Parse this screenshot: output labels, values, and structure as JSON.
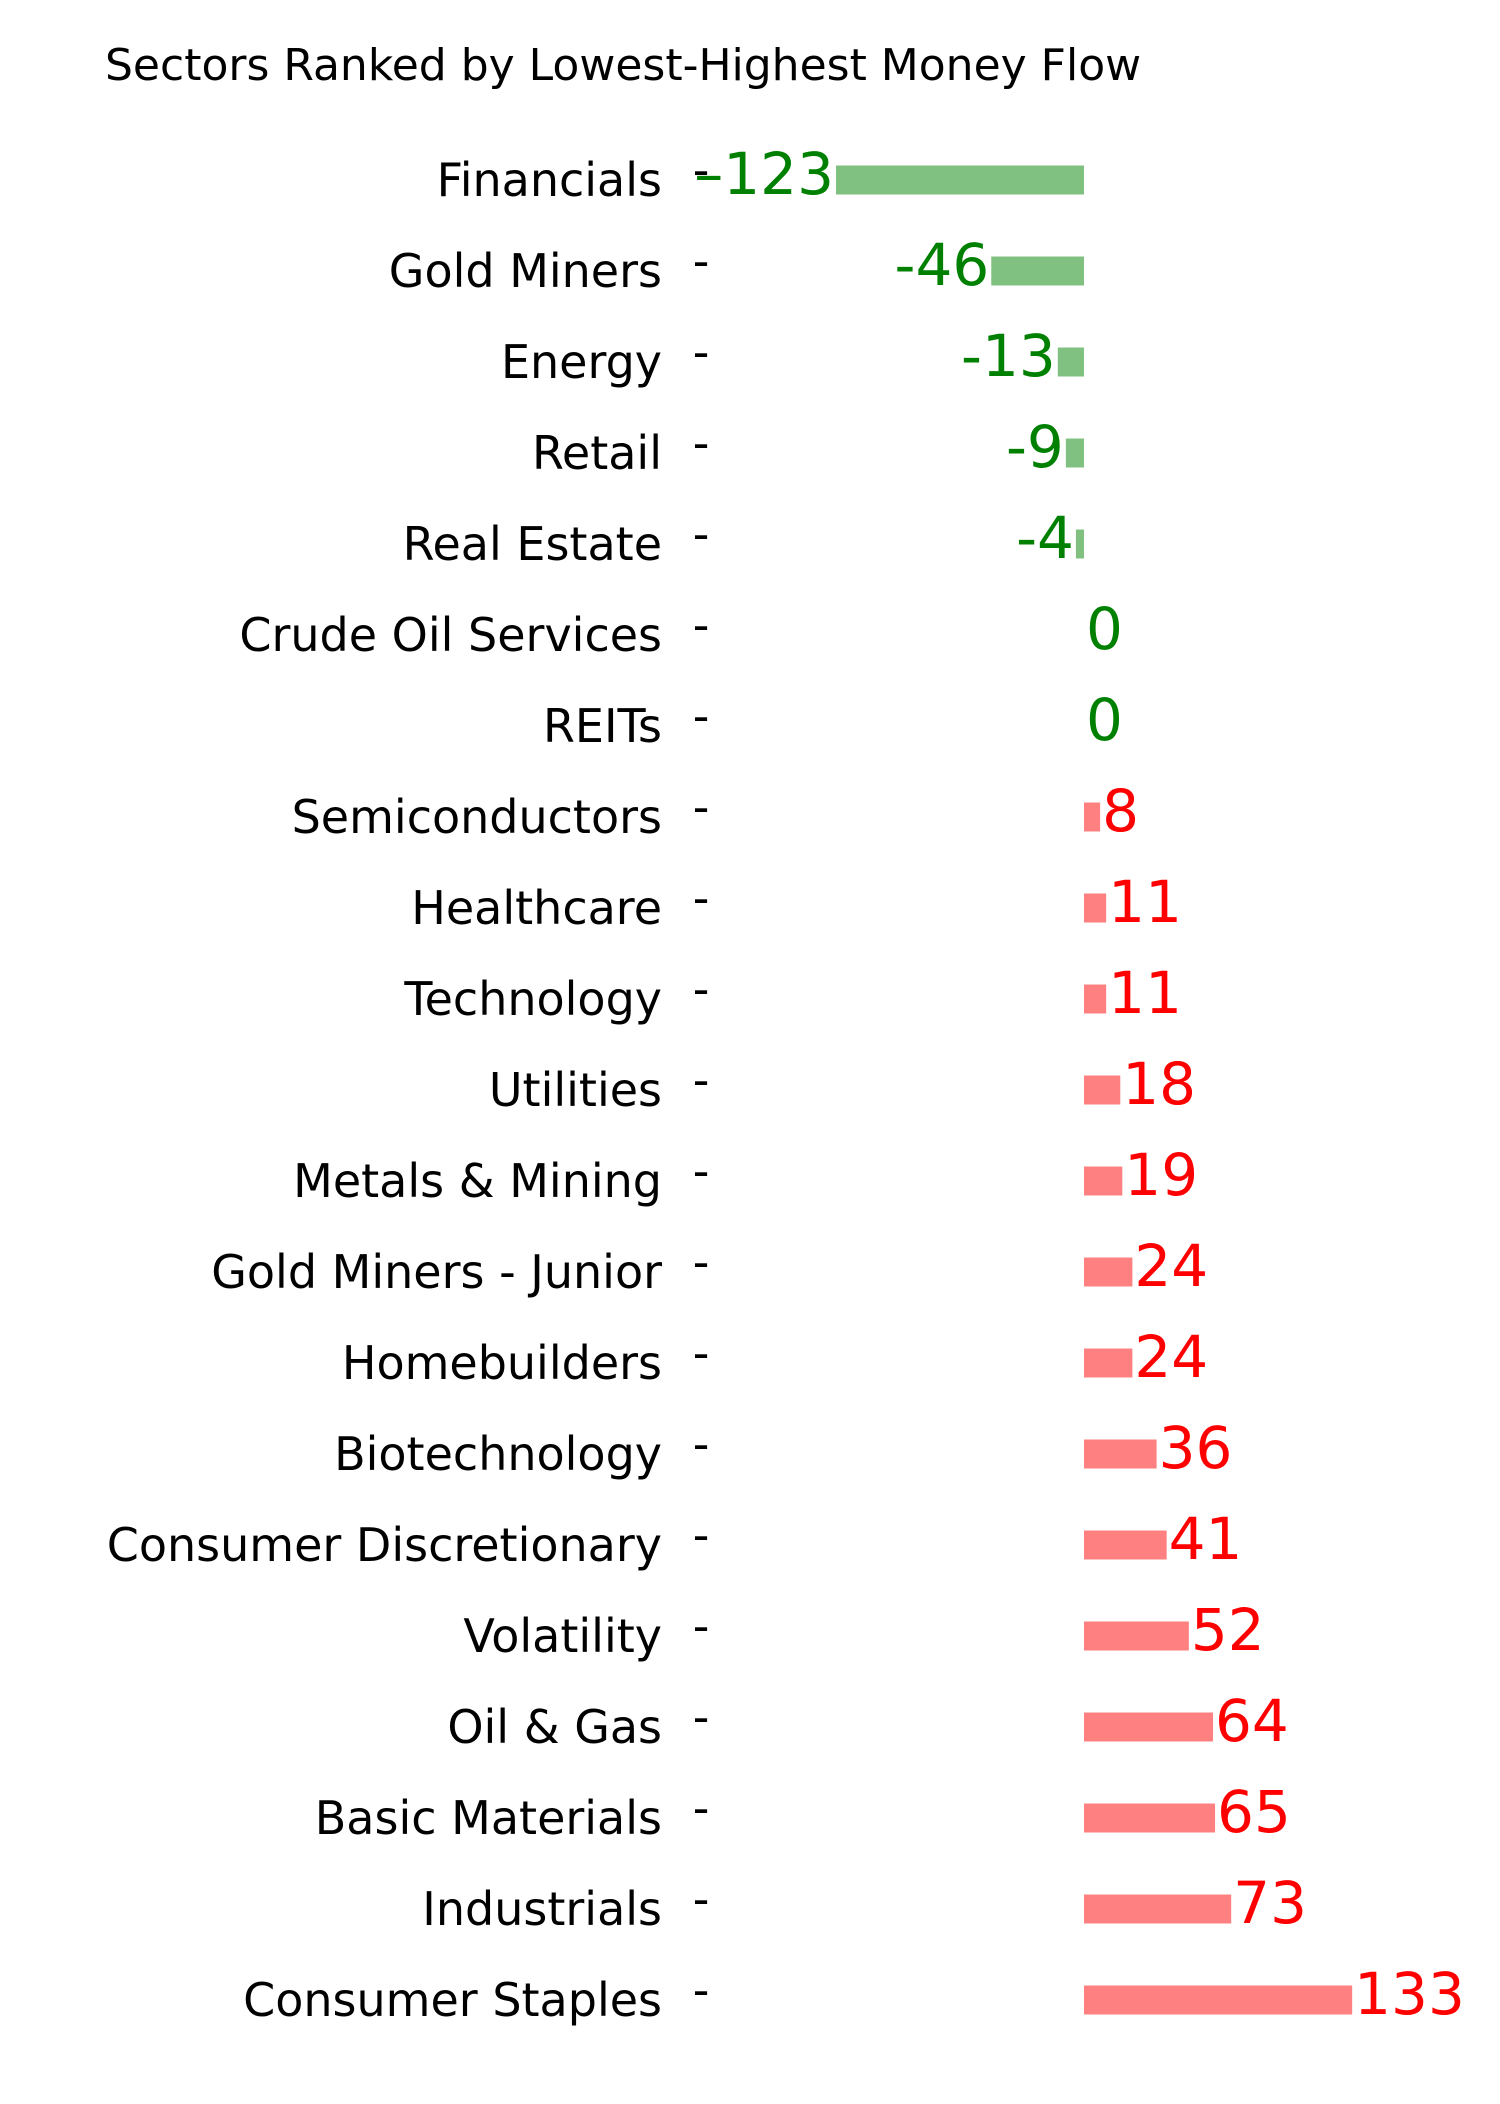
{
  "chart_data": {
    "type": "bar",
    "orientation": "horizontal",
    "title": "Sectors Ranked by Lowest-Highest Money Flow",
    "xlabel": "",
    "ylabel": "",
    "grid": false,
    "legend": "none",
    "colors": {
      "negative_bar": "#80c080",
      "positive_bar": "#ff8080",
      "negative_label": "#008000",
      "positive_label": "#ff0000",
      "text": "#000000"
    },
    "categories": [
      "Financials",
      "Gold Miners",
      "Energy",
      "Retail",
      "Real Estate",
      "Crude Oil Services",
      "REITs",
      "Semiconductors",
      "Healthcare",
      "Technology",
      "Utilities",
      "Metals & Mining",
      "Gold Miners - Junior",
      "Homebuilders",
      "Biotechnology",
      "Consumer Discretionary",
      "Volatility",
      "Oil & Gas",
      "Basic Materials",
      "Industrials",
      "Consumer Staples"
    ],
    "values": [
      -123,
      -46,
      -13,
      -9,
      -4,
      0,
      0,
      8,
      11,
      11,
      18,
      19,
      24,
      24,
      36,
      41,
      52,
      64,
      65,
      73,
      133
    ],
    "value_labels": [
      "–123",
      "-46",
      "-13",
      "-9",
      "-4",
      "0",
      "0",
      "8",
      "11",
      "11",
      "18",
      "19",
      "24",
      "24",
      "36",
      "41",
      "52",
      "64",
      "65",
      "73",
      "133"
    ],
    "tick_mark": "-"
  }
}
